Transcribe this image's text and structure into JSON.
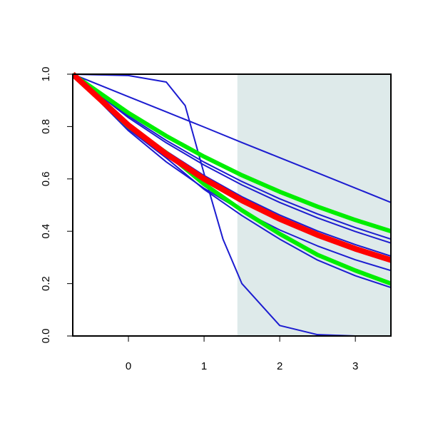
{
  "chart_data": {
    "type": "line",
    "x": [
      -0.736,
      0,
      0.5,
      1,
      1.5,
      2,
      2.5,
      3,
      3.47
    ],
    "xlim": [
      -0.736,
      3.47
    ],
    "ylim": [
      0,
      1
    ],
    "xticks": [
      0,
      1,
      2,
      3
    ],
    "yticks": [
      {
        "value": 0,
        "label": "0.0"
      },
      0.2,
      0.4,
      0.6,
      0.8,
      {
        "value": 1,
        "label": "1.0"
      }
    ],
    "shade_xlim": [
      1.44,
      3.47
    ],
    "shade_color": "#deeaea",
    "series": [
      {
        "color": "#1c1cd0",
        "width": 2,
        "values": [
          1,
          0.914,
          0.856,
          0.798,
          0.739,
          0.681,
          0.623,
          0.565,
          0.51
        ]
      },
      {
        "color": "#1c1cd0",
        "width": 2,
        "values": [
          1,
          0.84,
          0.747,
          0.664,
          0.59,
          0.524,
          0.466,
          0.414,
          0.37
        ]
      },
      {
        "color": "#1c1cd0",
        "width": 2,
        "values": [
          1,
          0.834,
          0.738,
          0.653,
          0.577,
          0.51,
          0.451,
          0.399,
          0.355
        ]
      },
      {
        "color": "#1c1cd0",
        "width": 2,
        "values": [
          1,
          0.813,
          0.706,
          0.613,
          0.532,
          0.462,
          0.401,
          0.349,
          0.305
        ]
      },
      {
        "color": "#1c1cd0",
        "width": 2,
        "values": [
          1,
          0.784,
          0.665,
          0.564,
          0.478,
          0.405,
          0.344,
          0.291,
          0.25
        ]
      },
      {
        "color": "#1c1cd0",
        "width": 2,
        "values": [
          1,
          0.79,
          0.68,
          0.56,
          0.46,
          0.37,
          0.29,
          0.23,
          0.185
        ]
      },
      {
        "color": "#1c1cd0",
        "width": 2,
        "x": [
          -0.736,
          0,
          0.5,
          0.75,
          1,
          1.25,
          1.5,
          2,
          2.5,
          3,
          3.47
        ],
        "values": [
          1,
          0.995,
          0.97,
          0.88,
          0.62,
          0.37,
          0.2,
          0.04,
          0.005,
          0,
          0
        ]
      },
      {
        "color": "#00ee00",
        "width": 6,
        "values": [
          1,
          0.852,
          0.764,
          0.685,
          0.614,
          0.551,
          0.494,
          0.443,
          0.4
        ]
      },
      {
        "color": "#00ee00",
        "width": 6,
        "values": [
          1,
          0.8,
          0.7,
          0.58,
          0.48,
          0.39,
          0.31,
          0.25,
          0.2
        ]
      },
      {
        "color": "#ff0000",
        "width": 8,
        "values": [
          1,
          0.805,
          0.695,
          0.6,
          0.518,
          0.447,
          0.386,
          0.333,
          0.29
        ]
      }
    ]
  }
}
